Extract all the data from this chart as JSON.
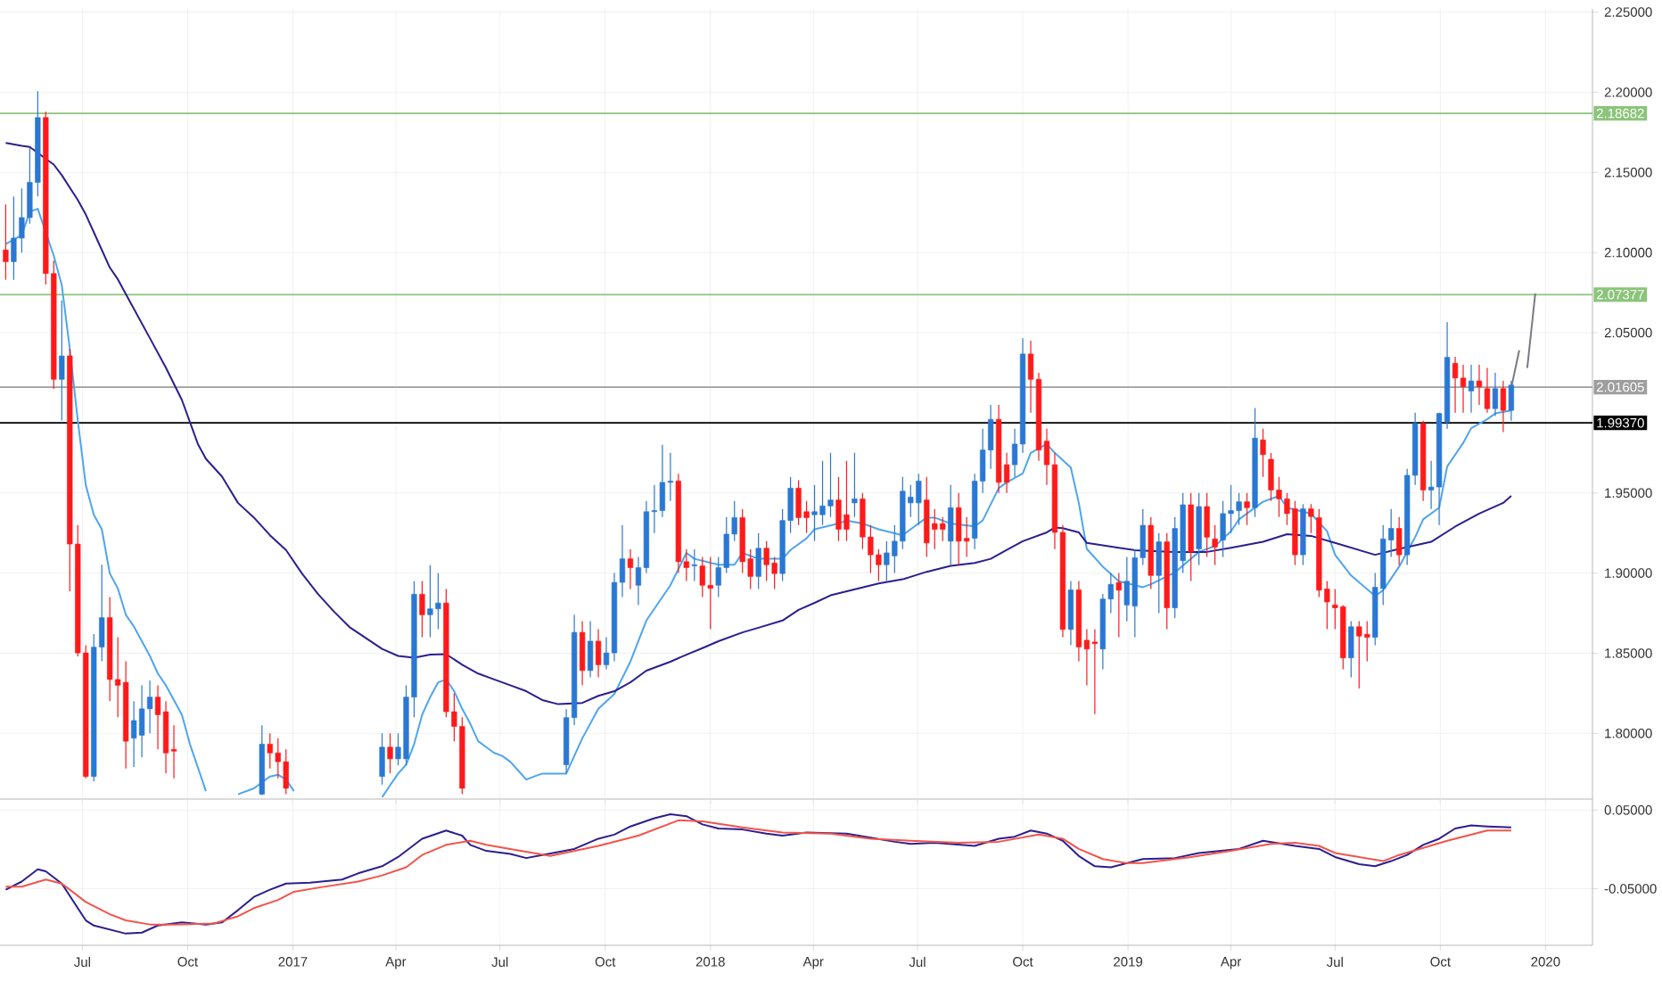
{
  "chart_data": [
    {
      "type": "candlestick",
      "x": [
        "2016-04-25",
        "2016-05-02",
        "2016-05-09",
        "2016-05-16",
        "2016-05-23",
        "2016-05-30",
        "2016-06-06",
        "2016-06-13",
        "2016-06-20",
        "2016-06-27",
        "2016-07-04",
        "2016-07-11",
        "2016-07-18",
        "2016-07-25",
        "2016-08-01",
        "2016-08-08",
        "2016-08-15",
        "2016-08-22",
        "2016-08-29",
        "2016-09-05",
        "2016-09-12",
        "2016-09-19",
        "2016-12-05",
        "2016-12-12",
        "2016-12-19",
        "2016-12-26",
        "2017-03-20",
        "2017-03-27",
        "2017-04-03",
        "2017-04-10",
        "2017-04-17",
        "2017-04-24",
        "2017-05-01",
        "2017-05-08",
        "2017-05-15",
        "2017-05-22",
        "2017-05-29",
        "2017-08-28",
        "2017-09-04",
        "2017-09-11",
        "2017-09-18",
        "2017-09-25",
        "2017-10-02",
        "2017-10-09",
        "2017-10-16",
        "2017-10-23",
        "2017-10-30",
        "2017-11-06",
        "2017-11-13",
        "2017-11-20",
        "2017-11-27",
        "2017-12-04",
        "2017-12-11",
        "2017-12-18",
        "2017-12-25",
        "2018-01-01",
        "2018-01-08",
        "2018-01-15",
        "2018-01-22",
        "2018-01-29",
        "2018-02-05",
        "2018-02-12",
        "2018-02-19",
        "2018-02-26",
        "2018-03-05",
        "2018-03-12",
        "2018-03-19",
        "2018-03-26",
        "2018-04-02",
        "2018-04-09",
        "2018-04-16",
        "2018-04-23",
        "2018-04-30",
        "2018-05-07",
        "2018-05-14",
        "2018-05-21",
        "2018-05-28",
        "2018-06-04",
        "2018-06-11",
        "2018-06-18",
        "2018-06-25",
        "2018-07-02",
        "2018-07-09",
        "2018-07-16",
        "2018-07-23",
        "2018-07-30",
        "2018-08-06",
        "2018-08-13",
        "2018-08-20",
        "2018-08-27",
        "2018-09-03",
        "2018-09-10",
        "2018-09-17",
        "2018-09-24",
        "2018-10-01",
        "2018-10-08",
        "2018-10-15",
        "2018-10-22",
        "2018-10-29",
        "2018-11-05",
        "2018-11-12",
        "2018-11-19",
        "2018-11-26",
        "2018-12-03",
        "2018-12-10",
        "2018-12-17",
        "2018-12-24",
        "2018-12-31",
        "2019-01-07",
        "2019-01-14",
        "2019-01-21",
        "2019-01-28",
        "2019-02-04",
        "2019-02-11",
        "2019-02-18",
        "2019-02-25",
        "2019-03-04",
        "2019-03-11",
        "2019-03-18",
        "2019-03-25",
        "2019-04-01",
        "2019-04-08",
        "2019-04-15",
        "2019-04-22",
        "2019-04-29",
        "2019-05-06",
        "2019-05-13",
        "2019-05-20",
        "2019-05-27",
        "2019-06-03",
        "2019-06-10",
        "2019-06-17",
        "2019-06-24",
        "2019-07-01",
        "2019-07-08",
        "2019-07-15",
        "2019-07-22",
        "2019-07-29",
        "2019-08-05",
        "2019-08-12",
        "2019-08-19",
        "2019-08-26",
        "2019-09-02",
        "2019-09-09",
        "2019-09-16",
        "2019-09-23",
        "2019-09-30",
        "2019-10-07",
        "2019-10-14",
        "2019-10-21",
        "2019-10-28",
        "2019-11-04",
        "2019-11-11",
        "2019-11-18",
        "2019-11-25",
        "2019-12-02"
      ],
      "ohlc": [
        [
          2.1016,
          2.13,
          2.083,
          2.0943
        ],
        [
          2.0943,
          2.135,
          2.083,
          2.109
        ],
        [
          2.109,
          2.14,
          2.1,
          2.1218
        ],
        [
          2.1218,
          2.165,
          2.118,
          2.1438
        ],
        [
          2.1438,
          2.2007,
          2.135,
          2.1842
        ],
        [
          2.1842,
          2.1879,
          2.08,
          2.0869
        ],
        [
          2.0869,
          2.095,
          2.015,
          2.0209
        ],
        [
          2.0209,
          2.07,
          1.9952,
          2.0355
        ],
        [
          2.0355,
          2.04,
          1.8887,
          1.9181
        ],
        [
          1.9181,
          1.93,
          1.848,
          1.8502
        ],
        [
          1.8502,
          1.855,
          1.772,
          1.7731
        ],
        [
          1.7731,
          1.862,
          1.77,
          1.8538
        ],
        [
          1.8538,
          1.9052,
          1.845,
          1.8722
        ],
        [
          1.8722,
          1.885,
          1.82,
          1.8336
        ],
        [
          1.8336,
          1.86,
          1.81,
          1.83
        ],
        [
          1.8318,
          1.845,
          1.778,
          1.7951
        ],
        [
          1.797,
          1.82,
          1.779,
          1.808
        ],
        [
          1.7988,
          1.83,
          1.785,
          1.8153
        ],
        [
          1.8153,
          1.833,
          1.8,
          1.8226
        ],
        [
          1.8226,
          1.83,
          1.79,
          1.8116
        ],
        [
          1.8135,
          1.82,
          1.775,
          1.7878
        ],
        [
          1.79,
          1.805,
          1.772,
          1.7889
        ],
        [
          1.762,
          1.805,
          1.7615,
          1.7933
        ],
        [
          1.7933,
          1.8,
          1.778,
          1.7878
        ],
        [
          1.7878,
          1.797,
          1.772,
          1.7823
        ],
        [
          1.7823,
          1.79,
          1.762,
          1.7657
        ],
        [
          1.7731,
          1.8,
          1.768,
          1.7914
        ],
        [
          1.7914,
          1.8,
          1.775,
          1.7841
        ],
        [
          1.7841,
          1.8,
          1.78,
          1.7914
        ],
        [
          1.7841,
          1.83,
          1.78,
          1.8226
        ],
        [
          1.8226,
          1.895,
          1.81,
          1.8868
        ],
        [
          1.8868,
          1.895,
          1.86,
          1.874
        ],
        [
          1.874,
          1.905,
          1.86,
          1.8777
        ],
        [
          1.8777,
          1.9,
          1.865,
          1.8813
        ],
        [
          1.8813,
          1.89,
          1.81,
          1.8135
        ],
        [
          1.8135,
          1.825,
          1.795,
          1.8043
        ],
        [
          1.8043,
          1.81,
          1.762,
          1.7657
        ],
        [
          1.7804,
          1.815,
          1.775,
          1.8098
        ],
        [
          1.8098,
          1.874,
          1.805,
          1.863
        ],
        [
          1.863,
          1.87,
          1.83,
          1.8392
        ],
        [
          1.8392,
          1.87,
          1.835,
          1.8575
        ],
        [
          1.8575,
          1.865,
          1.835,
          1.8428
        ],
        [
          1.8428,
          1.86,
          1.84,
          1.8502
        ],
        [
          1.8502,
          1.9,
          1.845,
          1.8942
        ],
        [
          1.8942,
          1.93,
          1.885,
          1.9089
        ],
        [
          1.9089,
          1.915,
          1.89,
          1.9034
        ],
        [
          1.8924,
          1.91,
          1.88,
          1.9034
        ],
        [
          1.9034,
          1.945,
          1.9,
          1.9383
        ],
        [
          1.9383,
          1.955,
          1.925,
          1.939
        ],
        [
          1.939,
          1.98,
          1.935,
          1.9566
        ],
        [
          1.9566,
          1.975,
          1.945,
          1.9574
        ],
        [
          1.9574,
          1.962,
          1.9,
          1.9071
        ],
        [
          1.9071,
          1.915,
          1.895,
          1.9034
        ],
        [
          1.9045,
          1.915,
          1.895,
          1.9052
        ],
        [
          1.9045,
          1.91,
          1.885,
          1.8924
        ],
        [
          1.8924,
          1.91,
          1.865,
          1.8905
        ],
        [
          1.8924,
          1.91,
          1.885,
          1.9034
        ],
        [
          1.9034,
          1.935,
          1.9,
          1.9243
        ],
        [
          1.9243,
          1.945,
          1.92,
          1.9346
        ],
        [
          1.9346,
          1.94,
          1.9,
          1.9071
        ],
        [
          1.9089,
          1.915,
          1.89,
          1.8979
        ],
        [
          1.8979,
          1.925,
          1.89,
          1.9155
        ],
        [
          1.9155,
          1.92,
          1.895,
          1.9052
        ],
        [
          1.9063,
          1.91,
          1.89,
          1.8997
        ],
        [
          1.8997,
          1.94,
          1.895,
          1.9328
        ],
        [
          1.9328,
          1.96,
          1.925,
          1.953
        ],
        [
          1.953,
          1.958,
          1.93,
          1.9346
        ],
        [
          1.9383,
          1.945,
          1.925,
          1.9346
        ],
        [
          1.9364,
          1.955,
          1.92,
          1.9383
        ],
        [
          1.9364,
          1.97,
          1.93,
          1.9419
        ],
        [
          1.9419,
          1.975,
          1.935,
          1.9456
        ],
        [
          1.9456,
          1.96,
          1.92,
          1.9273
        ],
        [
          1.9364,
          1.97,
          1.92,
          1.9273
        ],
        [
          1.9438,
          1.975,
          1.935,
          1.9463
        ],
        [
          1.9463,
          1.95,
          1.915,
          1.9225
        ],
        [
          1.9225,
          1.93,
          1.9,
          1.9114
        ],
        [
          1.9114,
          1.915,
          1.895,
          1.9052
        ],
        [
          1.9052,
          1.92,
          1.895,
          1.9126
        ],
        [
          1.9107,
          1.93,
          1.9,
          1.9199
        ],
        [
          1.9199,
          1.96,
          1.915,
          1.9511
        ],
        [
          1.9438,
          1.955,
          1.935,
          1.9474
        ],
        [
          1.9438,
          1.962,
          1.93,
          1.9574
        ],
        [
          1.9456,
          1.96,
          1.91,
          1.9188
        ],
        [
          1.9309,
          1.94,
          1.915,
          1.9273
        ],
        [
          1.9309,
          1.935,
          1.92,
          1.9273
        ],
        [
          1.9199,
          1.955,
          1.905,
          1.9408
        ],
        [
          1.9408,
          1.95,
          1.905,
          1.9199
        ],
        [
          1.9217,
          1.935,
          1.91,
          1.9199
        ],
        [
          1.9217,
          1.962,
          1.915,
          1.9574
        ],
        [
          1.9574,
          1.99,
          1.95,
          1.9768
        ],
        [
          1.9768,
          2.005,
          1.965,
          1.9959
        ],
        [
          1.9959,
          2.005,
          1.95,
          1.9566
        ],
        [
          1.9676,
          1.975,
          1.95,
          1.9566
        ],
        [
          1.9676,
          1.99,
          1.96,
          1.9805
        ],
        [
          1.9805,
          2.0466,
          1.975,
          2.0367
        ],
        [
          2.0367,
          2.045,
          2.0,
          2.0209
        ],
        [
          2.0209,
          2.025,
          1.97,
          1.9768
        ],
        [
          1.9823,
          1.99,
          1.955,
          1.9676
        ],
        [
          1.9676,
          1.975,
          1.915,
          1.9254
        ],
        [
          1.9254,
          1.93,
          1.86,
          1.8648
        ],
        [
          1.8648,
          1.895,
          1.855,
          1.8895
        ],
        [
          1.8895,
          1.895,
          1.845,
          1.8539
        ],
        [
          1.8581,
          1.865,
          1.83,
          1.8526
        ],
        [
          1.857,
          1.865,
          1.812,
          1.856
        ],
        [
          1.8526,
          1.887,
          1.84,
          1.8838
        ],
        [
          1.8838,
          1.9,
          1.875,
          1.893
        ],
        [
          1.8941,
          1.9,
          1.86,
          1.8893
        ],
        [
          1.8801,
          1.91,
          1.87,
          1.8949
        ],
        [
          1.8794,
          1.915,
          1.86,
          1.9096
        ],
        [
          1.9096,
          1.94,
          1.905,
          1.9298
        ],
        [
          1.9298,
          1.935,
          1.89,
          1.8985
        ],
        [
          1.8985,
          1.925,
          1.875,
          1.9195
        ],
        [
          1.9195,
          1.925,
          1.865,
          1.8783
        ],
        [
          1.8783,
          1.935,
          1.872,
          1.9279
        ],
        [
          1.9077,
          1.95,
          1.9,
          1.9426
        ],
        [
          1.9426,
          1.95,
          1.895,
          1.9132
        ],
        [
          1.9151,
          1.95,
          1.905,
          1.9415
        ],
        [
          1.9415,
          1.95,
          1.91,
          1.9224
        ],
        [
          1.9213,
          1.93,
          1.905,
          1.9162
        ],
        [
          1.9206,
          1.945,
          1.91,
          1.9371
        ],
        [
          1.9371,
          1.955,
          1.925,
          1.939
        ],
        [
          1.939,
          1.95,
          1.93,
          1.9445
        ],
        [
          1.9445,
          1.95,
          1.93,
          1.9408
        ],
        [
          1.9408,
          2.003,
          1.935,
          1.9842
        ],
        [
          1.9831,
          1.99,
          1.96,
          1.9739
        ],
        [
          1.971,
          1.975,
          1.945,
          1.9518
        ],
        [
          1.9518,
          1.96,
          1.935,
          1.9463
        ],
        [
          1.9463,
          1.95,
          1.93,
          1.9371
        ],
        [
          1.9401,
          1.945,
          1.905,
          1.9114
        ],
        [
          1.9114,
          1.943,
          1.905,
          1.9401
        ],
        [
          1.9401,
          1.943,
          1.925,
          1.9353
        ],
        [
          1.9346,
          1.94,
          1.885,
          1.8893
        ],
        [
          1.8901,
          1.895,
          1.865,
          1.882
        ],
        [
          1.8801,
          1.89,
          1.865,
          1.8783
        ],
        [
          1.879,
          1.88,
          1.84,
          1.8471
        ],
        [
          1.8471,
          1.87,
          1.835,
          1.8665
        ],
        [
          1.8665,
          1.87,
          1.828,
          1.8607
        ],
        [
          1.8618,
          1.87,
          1.845,
          1.8599
        ],
        [
          1.8599,
          1.9,
          1.855,
          1.8912
        ],
        [
          1.8904,
          1.93,
          1.88,
          1.9213
        ],
        [
          1.9206,
          1.94,
          1.91,
          1.9279
        ],
        [
          1.9279,
          1.935,
          1.905,
          1.9114
        ],
        [
          1.9114,
          1.965,
          1.905,
          1.961
        ],
        [
          1.961,
          2.0,
          1.955,
          1.9934
        ],
        [
          1.9934,
          1.995,
          1.945,
          1.9518
        ],
        [
          1.9518,
          1.97,
          1.94,
          1.9537
        ],
        [
          1.9537,
          2.0,
          1.93,
          1.9996
        ],
        [
          1.9941,
          2.0566,
          1.99,
          2.0346
        ],
        [
          2.0309,
          2.035,
          2.0,
          2.0217
        ],
        [
          2.0217,
          2.03,
          2.0,
          2.0162
        ],
        [
          2.0136,
          2.03,
          2.0,
          2.0199
        ],
        [
          2.0199,
          2.03,
          2.005,
          2.0162
        ],
        [
          2.0151,
          2.028,
          2.0,
          2.0026
        ],
        [
          2.0026,
          2.025,
          1.998,
          2.0151
        ],
        [
          2.0151,
          2.02,
          1.988,
          2.0015
        ],
        [
          2.0015,
          2.02,
          1.995,
          2.0173
        ]
      ],
      "series": [
        {
          "type": "line",
          "color": "#4ea5f0",
          "x": [
            "2016-04-25",
            "2016-05-09",
            "2016-05-16",
            "2016-05-23",
            "2016-05-30",
            "2016-06-06",
            "2016-06-13",
            "2016-06-20",
            "2016-06-27",
            "2016-07-04",
            "2016-07-11",
            "2016-07-18",
            "2016-07-25",
            "2016-08-01",
            "2016-08-08",
            "2016-08-15",
            "2016-08-22",
            "2016-08-29",
            "2016-09-05",
            "2016-09-12",
            "2016-09-19",
            "2016-09-26",
            "2016-10-03",
            "2016-10-10",
            "2016-10-17",
            "2016-10-24",
            "2016-11-14",
            "2016-11-28",
            "2016-12-05",
            "2016-12-12",
            "2016-12-19",
            "2016-12-26",
            "2017-01-02",
            "2017-01-09",
            "2017-03-20",
            "2017-03-27",
            "2017-04-03",
            "2017-04-10",
            "2017-04-17",
            "2017-04-24",
            "2017-05-01",
            "2017-05-08",
            "2017-05-15",
            "2017-05-22",
            "2017-05-29",
            "2017-06-05",
            "2017-06-12",
            "2017-06-19",
            "2017-06-26",
            "2017-07-03",
            "2017-07-10",
            "2017-07-17",
            "2017-07-24",
            "2017-07-31",
            "2017-08-07",
            "2017-08-28",
            "2017-09-11",
            "2017-09-25",
            "2017-10-09",
            "2017-10-23",
            "2017-11-06",
            "2017-11-27",
            "2017-12-11",
            "2017-12-18",
            "2018-01-08",
            "2018-01-22",
            "2018-01-29",
            "2018-02-12",
            "2018-03-05",
            "2018-03-12",
            "2018-03-26",
            "2018-04-02",
            "2018-04-23",
            "2018-04-30",
            "2018-05-14",
            "2018-05-28",
            "2018-06-18",
            "2018-06-25",
            "2018-07-09",
            "2018-07-16",
            "2018-07-30",
            "2018-08-20",
            "2018-08-27",
            "2018-09-10",
            "2018-09-17",
            "2018-10-01",
            "2018-10-08",
            "2018-10-22",
            "2018-10-29",
            "2018-11-12",
            "2018-11-19",
            "2018-11-26",
            "2018-12-10",
            "2018-12-24",
            "2019-01-14",
            "2019-01-21",
            "2019-02-11",
            "2019-03-04",
            "2019-03-18",
            "2019-04-01",
            "2019-04-08",
            "2019-04-29",
            "2019-05-13",
            "2019-05-20",
            "2019-06-10",
            "2019-06-24",
            "2019-07-01",
            "2019-07-15",
            "2019-08-05",
            "2019-08-12",
            "2019-08-26",
            "2019-09-09",
            "2019-09-16",
            "2019-09-30",
            "2019-10-07",
            "2019-10-21",
            "2019-10-28",
            "2019-11-11",
            "2019-11-18",
            "2019-12-02"
          ],
          "values": [
            2.1053,
            2.1108,
            2.1255,
            2.1273,
            2.1126,
            2.098,
            2.0796,
            2.04,
            1.9952,
            1.9548,
            1.9364,
            1.9273,
            1.8997,
            1.8905,
            1.874,
            1.8667,
            1.8575,
            1.8483,
            1.8373,
            1.83,
            1.8208,
            1.8116,
            1.7933,
            1.7786,
            1.7639,
            null,
            1.762,
            1.7657,
            1.7694,
            1.7731,
            1.7742,
            1.7712,
            1.7639,
            null,
            1.7602,
            1.7676,
            1.7749,
            1.7804,
            1.7933,
            1.8116,
            1.8226,
            1.8318,
            1.8336,
            1.8263,
            1.8153,
            1.8061,
            1.7951,
            1.7914,
            1.7878,
            1.7859,
            1.7823,
            1.7768,
            1.7712,
            1.7731,
            1.7749,
            1.7749,
            1.7969,
            1.8153,
            1.8245,
            1.8447,
            1.8704,
            1.8924,
            1.9126,
            1.9089,
            1.9052,
            1.9052,
            1.9126,
            1.9089,
            1.9089,
            1.9144,
            1.9217,
            1.9273,
            1.9309,
            1.9328,
            1.9309,
            1.9273,
            1.9236,
            1.9273,
            1.9346,
            1.9346,
            1.9309,
            1.9291,
            1.9328,
            1.953,
            1.9566,
            1.9621,
            1.975,
            1.9805,
            1.975,
            1.9658,
            1.9438,
            1.9151,
            1.904,
            1.8949,
            1.8912,
            1.893,
            1.9004,
            1.9132,
            1.9169,
            1.9261,
            1.9335,
            1.9445,
            1.9482,
            1.9408,
            1.9371,
            1.9261,
            1.9114,
            1.8985,
            1.8857,
            1.8893,
            1.904,
            1.9224,
            1.9335,
            1.9408,
            1.9665,
            1.9812,
            1.9904,
            1.996,
            1.9996,
            2.0015
          ]
        },
        {
          "type": "line",
          "color": "#2b1f8f",
          "x": [
            "2016-04-25",
            "2016-05-09",
            "2016-05-16",
            "2016-05-30",
            "2016-06-06",
            "2016-06-13",
            "2016-06-27",
            "2016-07-04",
            "2016-07-18",
            "2016-07-25",
            "2016-08-01",
            "2016-08-15",
            "2016-08-29",
            "2016-09-12",
            "2016-09-26",
            "2016-10-10",
            "2016-10-17",
            "2016-10-31",
            "2016-11-14",
            "2016-11-28",
            "2016-12-12",
            "2016-12-26",
            "2017-01-09",
            "2017-01-23",
            "2017-02-06",
            "2017-02-20",
            "2017-03-06",
            "2017-03-20",
            "2017-04-03",
            "2017-04-17",
            "2017-05-01",
            "2017-05-15",
            "2017-05-29",
            "2017-06-12",
            "2017-06-26",
            "2017-07-10",
            "2017-07-24",
            "2017-08-07",
            "2017-08-21",
            "2017-09-11",
            "2017-09-25",
            "2017-10-09",
            "2017-10-23",
            "2017-11-06",
            "2017-11-27",
            "2017-12-11",
            "2017-12-25",
            "2018-01-08",
            "2018-01-29",
            "2018-02-12",
            "2018-03-05",
            "2018-03-19",
            "2018-04-02",
            "2018-04-16",
            "2018-05-07",
            "2018-05-28",
            "2018-06-18",
            "2018-07-09",
            "2018-07-30",
            "2018-08-20",
            "2018-09-03",
            "2018-09-17",
            "2018-10-01",
            "2018-10-22",
            "2018-10-29",
            "2018-11-05",
            "2018-11-19",
            "2018-11-26",
            "2018-12-24",
            "2019-01-07",
            "2019-02-11",
            "2019-03-11",
            "2019-04-01",
            "2019-04-29",
            "2019-05-20",
            "2019-06-10",
            "2019-07-01",
            "2019-08-05",
            "2019-08-26",
            "2019-09-23",
            "2019-10-14",
            "2019-11-04",
            "2019-11-25",
            "2019-12-02"
          ],
          "values": [
            2.1684,
            2.1666,
            2.1659,
            2.1585,
            2.1549,
            2.1483,
            2.1328,
            2.1237,
            2.1016,
            2.0906,
            2.0833,
            2.0649,
            2.0466,
            2.0282,
            2.008,
            1.9805,
            1.9713,
            1.9603,
            1.9438,
            1.9346,
            1.9236,
            1.9144,
            1.8997,
            1.8869,
            1.8759,
            1.866,
            1.8594,
            1.8527,
            1.8483,
            1.8472,
            1.8491,
            1.8494,
            1.8428,
            1.8373,
            1.8336,
            1.83,
            1.8263,
            1.8208,
            1.8182,
            1.819,
            1.8234,
            1.8263,
            1.8318,
            1.8391,
            1.8447,
            1.8491,
            1.8532,
            1.8575,
            1.863,
            1.8659,
            1.8704,
            1.877,
            1.8814,
            1.8861,
            1.8898,
            1.8935,
            1.8961,
            1.9008,
            1.9045,
            1.9063,
            1.9089,
            1.9144,
            1.9199,
            1.9254,
            1.9284,
            1.928,
            1.9254,
            1.9188,
            1.9158,
            1.9143,
            1.9132,
            1.9132,
            1.9158,
            1.9195,
            1.9243,
            1.9232,
            1.9188,
            1.9114,
            1.9151,
            1.9195,
            1.929,
            1.9371,
            1.9438,
            1.9482
          ]
        },
        {
          "type": "line",
          "color": "#787b86",
          "x": [
            "2019-12-02",
            "2019-12-09",
            "2019-12-12",
            "2019-12-16",
            "2019-12-23"
          ],
          "values": [
            2.0156,
            2.039,
            null,
            2.028,
            2.0744
          ]
        }
      ],
      "xlim": [
        "2016-04-20",
        "2020-02-11"
      ],
      "ylim": [
        1.759,
        2.252
      ],
      "xticks": [
        {
          "value": "2016-07-01",
          "label": null
        },
        {
          "value": "2016-10-01",
          "label": null
        },
        {
          "value": "2017-01-01",
          "label": null
        },
        {
          "value": "2017-04-01",
          "label": null
        },
        {
          "value": "2017-07-01",
          "label": null
        },
        {
          "value": "2017-10-01",
          "label": null
        },
        {
          "value": "2018-01-01",
          "label": null
        },
        {
          "value": "2018-04-01",
          "label": null
        },
        {
          "value": "2018-07-01",
          "label": null
        },
        {
          "value": "2018-10-01",
          "label": null
        },
        {
          "value": "2019-01-01",
          "label": null
        },
        {
          "value": "2019-04-01",
          "label": null
        },
        {
          "value": "2019-07-01",
          "label": null
        },
        {
          "value": "2019-10-01",
          "label": null
        },
        {
          "value": "2020-01-01",
          "label": null
        }
      ],
      "yticks": [
        {
          "value": 1.8,
          "label": "1.80000"
        },
        {
          "value": 1.85,
          "label": "1.85000"
        },
        {
          "value": 1.9,
          "label": "1.90000"
        },
        {
          "value": 1.95,
          "label": "1.95000"
        },
        {
          "value": 2.05,
          "label": "2.05000"
        },
        {
          "value": 2.1,
          "label": "2.10000"
        },
        {
          "value": 2.15,
          "label": "2.15000"
        },
        {
          "value": 2.2,
          "label": "2.20000"
        },
        {
          "value": 2.25,
          "label": "2.25000"
        }
      ],
      "ref_lines": [
        {
          "axis": "y",
          "value": 2.18682,
          "label": "2.18682",
          "color": "#8bc47a"
        },
        {
          "axis": "y",
          "value": 2.07377,
          "label": "2.07377",
          "color": "#8bc47a"
        },
        {
          "axis": "y",
          "value": 2.01605,
          "label": "2.01605",
          "color": "#9e9e9e"
        },
        {
          "axis": "y",
          "value": 1.9937,
          "label": "1.99370",
          "color": "#000000"
        }
      ],
      "grid": true,
      "tick_labels": "y"
    },
    {
      "type": "line",
      "series": [
        {
          "color": "#2b1f8f",
          "x": [
            "2016-04-25",
            "2016-05-09",
            "2016-05-23",
            "2016-05-30",
            "2016-06-13",
            "2016-07-04",
            "2016-07-11",
            "2016-08-08",
            "2016-08-22",
            "2016-09-05",
            "2016-09-26",
            "2016-10-17",
            "2016-10-31",
            "2016-11-14",
            "2016-11-28",
            "2016-12-12",
            "2016-12-26",
            "2017-01-16",
            "2017-02-13",
            "2017-02-27",
            "2017-03-20",
            "2017-04-03",
            "2017-04-24",
            "2017-05-15",
            "2017-05-29",
            "2017-06-05",
            "2017-06-19",
            "2017-07-10",
            "2017-07-24",
            "2017-08-07",
            "2017-09-04",
            "2017-09-25",
            "2017-10-09",
            "2017-10-23",
            "2017-11-13",
            "2017-11-27",
            "2017-12-11",
            "2017-12-25",
            "2018-01-08",
            "2018-01-29",
            "2018-02-19",
            "2018-03-05",
            "2018-03-26",
            "2018-04-30",
            "2018-05-21",
            "2018-06-11",
            "2018-06-25",
            "2018-07-16",
            "2018-08-20",
            "2018-09-10",
            "2018-09-24",
            "2018-10-08",
            "2018-10-22",
            "2018-11-05",
            "2018-11-19",
            "2018-12-03",
            "2018-12-17",
            "2019-01-14",
            "2019-02-11",
            "2019-03-04",
            "2019-04-08",
            "2019-04-29",
            "2019-05-27",
            "2019-06-17",
            "2019-07-01",
            "2019-07-22",
            "2019-08-05",
            "2019-08-19",
            "2019-09-02",
            "2019-09-16",
            "2019-09-30",
            "2019-10-14",
            "2019-10-28",
            "2019-11-11",
            "2019-12-02"
          ],
          "values": [
            -0.0513,
            -0.0409,
            -0.0253,
            -0.0279,
            -0.0435,
            -0.0903,
            -0.0968,
            -0.1071,
            -0.1058,
            -0.0968,
            -0.0929,
            -0.0955,
            -0.0929,
            -0.0773,
            -0.0604,
            -0.0513,
            -0.0435,
            -0.0422,
            -0.0383,
            -0.0305,
            -0.0214,
            -0.0097,
            0.0136,
            0.024,
            0.0175,
            0.0058,
            -0.0019,
            -0.0058,
            -0.011,
            -0.0071,
            0.0006,
            0.0136,
            0.0188,
            0.0292,
            0.0396,
            0.0448,
            0.0422,
            0.0318,
            0.0266,
            0.0253,
            0.0201,
            0.0175,
            0.0214,
            0.0201,
            0.0149,
            0.0097,
            0.0071,
            0.0084,
            0.0045,
            0.0136,
            0.0162,
            0.024,
            0.0201,
            0.011,
            -0.0084,
            -0.0214,
            -0.0227,
            -0.0123,
            -0.011,
            -0.0045,
            0.0006,
            0.011,
            0.0045,
            0.0006,
            -0.0097,
            -0.0188,
            -0.0214,
            -0.0149,
            -0.0071,
            0.0058,
            0.0136,
            0.0266,
            0.0305,
            0.0292,
            0.0279
          ]
        },
        {
          "color": "#f2544b",
          "x": [
            "2016-04-25",
            "2016-05-09",
            "2016-05-30",
            "2016-06-13",
            "2016-07-04",
            "2016-07-25",
            "2016-08-08",
            "2016-08-29",
            "2016-09-19",
            "2016-10-24",
            "2016-11-14",
            "2016-11-28",
            "2016-12-19",
            "2017-01-02",
            "2017-01-23",
            "2017-02-27",
            "2017-03-20",
            "2017-04-10",
            "2017-04-24",
            "2017-05-15",
            "2017-06-05",
            "2017-06-19",
            "2017-07-10",
            "2017-08-14",
            "2017-09-25",
            "2017-10-30",
            "2017-12-04",
            "2017-12-25",
            "2018-01-29",
            "2018-03-05",
            "2018-04-16",
            "2018-05-21",
            "2018-06-25",
            "2018-08-06",
            "2018-09-10",
            "2018-10-15",
            "2018-11-05",
            "2018-11-19",
            "2018-12-10",
            "2018-12-31",
            "2019-01-14",
            "2019-02-25",
            "2019-04-01",
            "2019-05-06",
            "2019-05-27",
            "2019-06-17",
            "2019-07-01",
            "2019-08-12",
            "2019-08-26",
            "2019-10-07",
            "2019-11-11",
            "2019-12-02"
          ],
          "values": [
            -0.0474,
            -0.0474,
            -0.0383,
            -0.0435,
            -0.0669,
            -0.0825,
            -0.0903,
            -0.0955,
            -0.0955,
            -0.0942,
            -0.0851,
            -0.0747,
            -0.0643,
            -0.0539,
            -0.0487,
            -0.0409,
            -0.0331,
            -0.0227,
            -0.0071,
            0.0058,
            0.011,
            0.0058,
            0.0006,
            -0.0084,
            0.0045,
            0.0175,
            0.037,
            0.0357,
            0.0279,
            0.0214,
            0.0201,
            0.0136,
            0.011,
            0.0084,
            0.0097,
            0.0188,
            0.0136,
            0.0006,
            -0.0123,
            -0.0175,
            -0.0175,
            -0.0097,
            -0.0019,
            0.0071,
            0.0084,
            0.0045,
            -0.0045,
            -0.0149,
            -0.0071,
            0.011,
            0.024,
            0.024
          ]
        }
      ],
      "xlim": [
        "2016-04-20",
        "2020-02-11"
      ],
      "ylim": [
        -0.122,
        0.064
      ],
      "xticks": [
        {
          "value": "2016-07-01",
          "label": "Jul"
        },
        {
          "value": "2016-10-01",
          "label": "Oct"
        },
        {
          "value": "2017-01-01",
          "label": "2017"
        },
        {
          "value": "2017-04-01",
          "label": "Apr"
        },
        {
          "value": "2017-07-01",
          "label": "Jul"
        },
        {
          "value": "2017-10-01",
          "label": "Oct"
        },
        {
          "value": "2018-01-01",
          "label": "2018"
        },
        {
          "value": "2018-04-01",
          "label": "Apr"
        },
        {
          "value": "2018-07-01",
          "label": "Jul"
        },
        {
          "value": "2018-10-01",
          "label": "Oct"
        },
        {
          "value": "2019-01-01",
          "label": "2019"
        },
        {
          "value": "2019-04-01",
          "label": "Apr"
        },
        {
          "value": "2019-07-01",
          "label": "Jul"
        },
        {
          "value": "2019-10-01",
          "label": "Oct"
        },
        {
          "value": "2020-01-01",
          "label": "2020"
        }
      ],
      "yticks": [
        {
          "value": 0.05,
          "label": "0.05000"
        },
        {
          "value": -0.05,
          "label": "-0.05000"
        }
      ],
      "grid": true
    }
  ]
}
